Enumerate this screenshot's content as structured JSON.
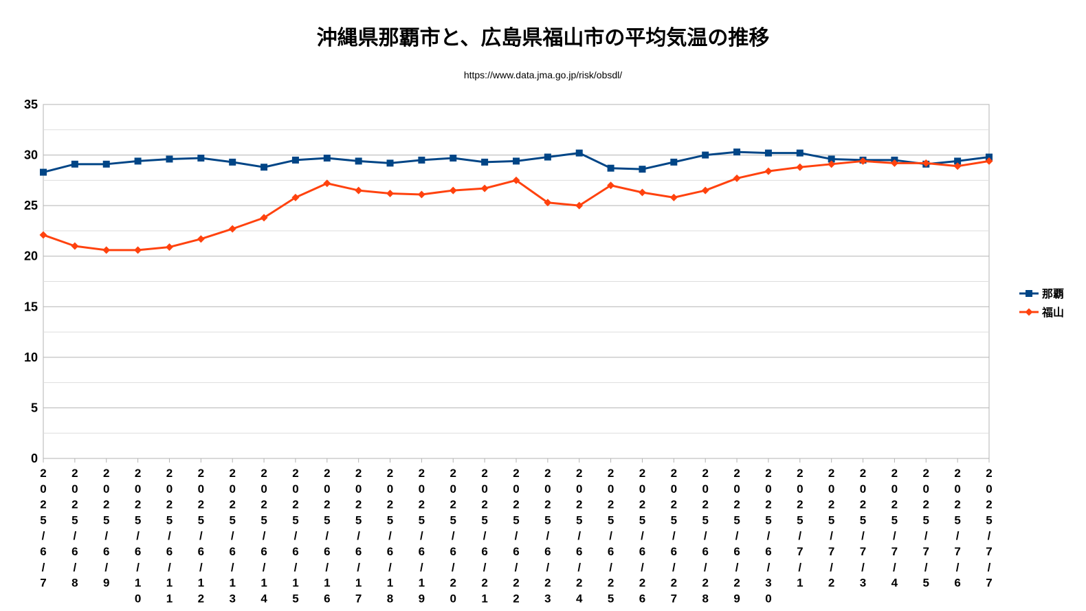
{
  "chart_data": {
    "type": "line",
    "title": "沖縄県那覇市と、広島県福山市の平均気温の推移",
    "subtitle": "https://www.data.jma.go.jp/risk/obsdl/",
    "categories": [
      "2025/6/7",
      "2025/6/8",
      "2025/6/9",
      "2025/6/10",
      "2025/6/11",
      "2025/6/12",
      "2025/6/13",
      "2025/6/14",
      "2025/6/15",
      "2025/6/16",
      "2025/6/17",
      "2025/6/18",
      "2025/6/19",
      "2025/6/20",
      "2025/6/21",
      "2025/6/22",
      "2025/6/23",
      "2025/6/24",
      "2025/6/25",
      "2025/6/26",
      "2025/6/27",
      "2025/6/28",
      "2025/6/29",
      "2025/6/30",
      "2025/7/1",
      "2025/7/2",
      "2025/7/3",
      "2025/7/4",
      "2025/7/5",
      "2025/7/6",
      "2025/7/7"
    ],
    "series": [
      {
        "name": "那覇",
        "color": "#004586",
        "marker": "square",
        "values": [
          28.3,
          29.1,
          29.1,
          29.4,
          29.6,
          29.7,
          29.3,
          28.8,
          29.5,
          29.7,
          29.4,
          29.2,
          29.5,
          29.7,
          29.3,
          29.4,
          29.8,
          30.2,
          28.7,
          28.6,
          29.3,
          30.0,
          30.3,
          30.2,
          30.2,
          29.6,
          29.5,
          29.5,
          29.1,
          29.4,
          29.8
        ]
      },
      {
        "name": "福山",
        "color": "#ff420e",
        "marker": "diamond",
        "values": [
          22.1,
          21.0,
          20.6,
          20.6,
          20.9,
          21.7,
          22.7,
          23.8,
          25.8,
          27.2,
          26.5,
          26.2,
          26.1,
          26.5,
          26.7,
          27.5,
          25.3,
          25.0,
          27.0,
          26.3,
          25.8,
          26.5,
          27.7,
          28.4,
          28.8,
          29.1,
          29.4,
          29.2,
          29.2,
          28.9,
          29.4
        ]
      }
    ],
    "ylim": [
      0,
      35
    ],
    "yticks": [
      0,
      5,
      10,
      15,
      20,
      25,
      30,
      35
    ],
    "grid": true,
    "legend": "right"
  }
}
